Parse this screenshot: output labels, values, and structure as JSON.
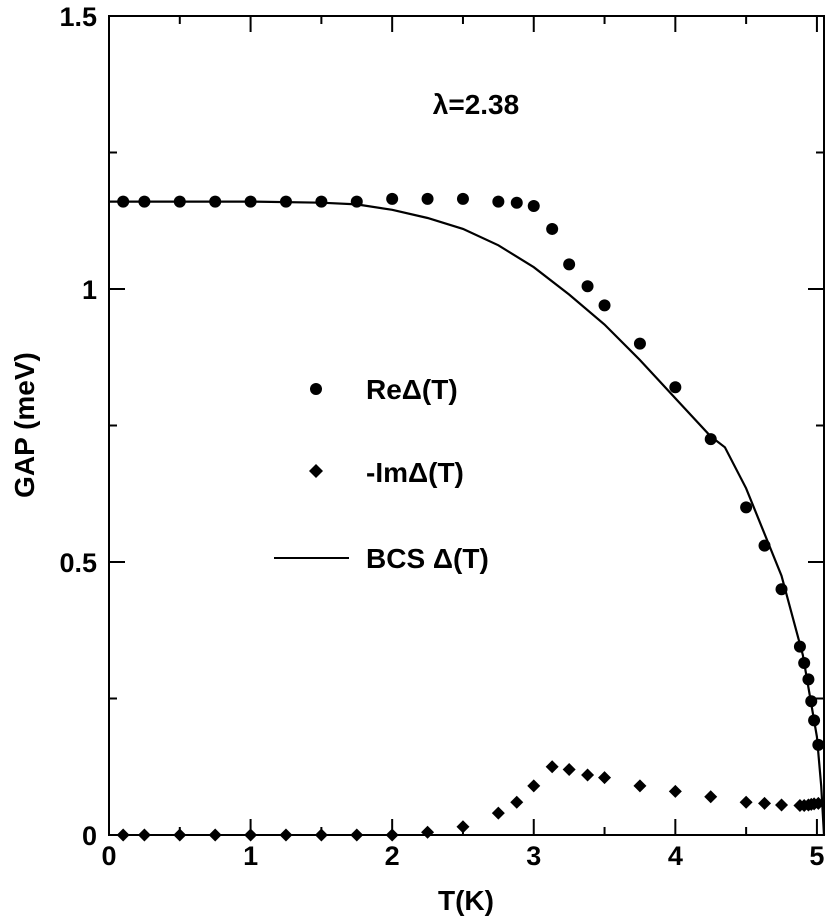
{
  "chart_data": {
    "type": "scatter",
    "xlabel": "T(K)",
    "ylabel": "GAP (meV)",
    "xlim": [
      0,
      5.05
    ],
    "ylim": [
      0,
      1.5
    ],
    "x_ticks": [
      0,
      1,
      2,
      3,
      4,
      5
    ],
    "x_tick_labels": [
      "0",
      "1",
      "2",
      "3",
      "4",
      "5"
    ],
    "y_ticks": [
      0,
      0.5,
      1,
      1.5
    ],
    "y_tick_labels": [
      "0",
      "0.5",
      "1",
      "1.5"
    ],
    "annotation": "λ=2.38",
    "legend": {
      "position": "center-left",
      "entries": [
        "ReΔ(T)",
        "-ImΔ(T)",
        "BCS Δ(T)"
      ]
    },
    "series": [
      {
        "name": "ReΔ(T)",
        "marker": "circle",
        "x": [
          0.1,
          0.25,
          0.5,
          0.75,
          1.0,
          1.25,
          1.5,
          1.75,
          2.0,
          2.25,
          2.5,
          2.75,
          2.88,
          3.0,
          3.13,
          3.25,
          3.38,
          3.5,
          3.75,
          4.0,
          4.25,
          4.5,
          4.63,
          4.75,
          4.88,
          4.91,
          4.94,
          4.96,
          4.98,
          5.01
        ],
        "y": [
          1.16,
          1.16,
          1.16,
          1.16,
          1.16,
          1.16,
          1.16,
          1.16,
          1.165,
          1.165,
          1.165,
          1.16,
          1.158,
          1.152,
          1.11,
          1.045,
          1.005,
          0.97,
          0.9,
          0.82,
          0.725,
          0.6,
          0.53,
          0.45,
          0.345,
          0.315,
          0.285,
          0.245,
          0.21,
          0.165
        ]
      },
      {
        "name": "-ImΔ(T)",
        "marker": "diamond",
        "x": [
          0.1,
          0.25,
          0.5,
          0.75,
          1.0,
          1.25,
          1.5,
          1.75,
          2.0,
          2.25,
          2.5,
          2.75,
          2.88,
          3.0,
          3.13,
          3.25,
          3.38,
          3.5,
          3.75,
          4.0,
          4.25,
          4.5,
          4.63,
          4.75,
          4.88,
          4.91,
          4.94,
          4.96,
          4.98,
          5.01
        ],
        "y": [
          0,
          0,
          0,
          0,
          0,
          0,
          0,
          0,
          0,
          0.005,
          0.015,
          0.04,
          0.06,
          0.09,
          0.125,
          0.12,
          0.11,
          0.105,
          0.09,
          0.08,
          0.07,
          0.06,
          0.058,
          0.055,
          0.054,
          0.054,
          0.055,
          0.056,
          0.057,
          0.058
        ]
      },
      {
        "name": "BCS Δ(T)",
        "marker": "line",
        "x": [
          0.0,
          0.5,
          1.0,
          1.5,
          1.75,
          2.0,
          2.25,
          2.5,
          2.75,
          3.0,
          3.25,
          3.5,
          3.75,
          4.0,
          4.25,
          4.35,
          4.5,
          4.75,
          4.9,
          5.0,
          5.03,
          5.05
        ],
        "y": [
          1.16,
          1.16,
          1.16,
          1.158,
          1.155,
          1.145,
          1.13,
          1.11,
          1.08,
          1.04,
          0.99,
          0.935,
          0.87,
          0.8,
          0.73,
          0.71,
          0.635,
          0.475,
          0.33,
          0.18,
          0.09,
          0.0
        ]
      }
    ]
  }
}
